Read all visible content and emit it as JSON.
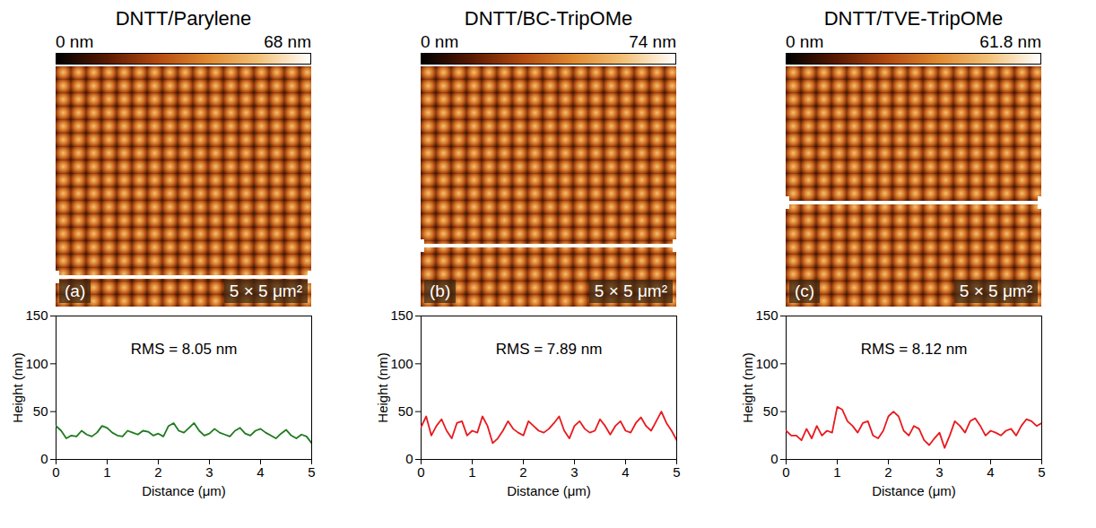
{
  "chart_data": [
    {
      "type": "line",
      "title": "DNTT/Parylene",
      "panel_label": "(a)",
      "scan_size": "5 × 5 μm²",
      "colorbar": {
        "range": [
          0,
          68
        ],
        "ticks": [
          {
            "value": 0,
            "label": "0 nm"
          },
          {
            "value": 68,
            "label": "68 nm"
          }
        ]
      },
      "annotation": "RMS = 8.05 nm",
      "xlabel": "Distance (μm)",
      "ylabel": "Height (nm)",
      "xlim": [
        0,
        5
      ],
      "xticks": [
        0,
        1,
        2,
        3,
        4,
        5
      ],
      "ylim": [
        0,
        150
      ],
      "yticks": [
        0,
        50,
        100,
        150
      ],
      "x": [
        0,
        0.1,
        0.2,
        0.3,
        0.4,
        0.5,
        0.6,
        0.7,
        0.8,
        0.9,
        1,
        1.1,
        1.2,
        1.3,
        1.4,
        1.5,
        1.6,
        1.7,
        1.8,
        1.9,
        2,
        2.1,
        2.2,
        2.3,
        2.4,
        2.5,
        2.6,
        2.7,
        2.8,
        2.9,
        3,
        3.1,
        3.2,
        3.3,
        3.4,
        3.5,
        3.6,
        3.7,
        3.8,
        3.9,
        4,
        4.1,
        4.2,
        4.3,
        4.4,
        4.5,
        4.6,
        4.7,
        4.8,
        4.9,
        5
      ],
      "series": [
        {
          "color": "#1e7a1e",
          "values": [
            35,
            30,
            22,
            25,
            24,
            30,
            26,
            24,
            28,
            35,
            33,
            28,
            25,
            24,
            30,
            28,
            26,
            30,
            29,
            25,
            27,
            24,
            35,
            38,
            30,
            28,
            33,
            38,
            30,
            25,
            27,
            32,
            28,
            26,
            24,
            30,
            33,
            27,
            25,
            30,
            32,
            28,
            25,
            22,
            27,
            31,
            25,
            22,
            26,
            24,
            17
          ]
        }
      ]
    },
    {
      "type": "line",
      "title": "DNTT/BC-TripOMe",
      "panel_label": "(b)",
      "scan_size": "5 × 5 μm²",
      "colorbar": {
        "range": [
          0,
          74
        ],
        "ticks": [
          {
            "value": 0,
            "label": "0 nm"
          },
          {
            "value": 74,
            "label": "74 nm"
          }
        ]
      },
      "annotation": "RMS = 7.89 nm",
      "xlabel": "Distance (μm)",
      "ylabel": "Height (nm)",
      "xlim": [
        0,
        5
      ],
      "xticks": [
        0,
        1,
        2,
        3,
        4,
        5
      ],
      "ylim": [
        0,
        150
      ],
      "yticks": [
        0,
        50,
        100,
        150
      ],
      "x": [
        0,
        0.1,
        0.2,
        0.3,
        0.4,
        0.5,
        0.6,
        0.7,
        0.8,
        0.9,
        1,
        1.1,
        1.2,
        1.3,
        1.4,
        1.5,
        1.6,
        1.7,
        1.8,
        1.9,
        2,
        2.1,
        2.2,
        2.3,
        2.4,
        2.5,
        2.6,
        2.7,
        2.8,
        2.9,
        3,
        3.1,
        3.2,
        3.3,
        3.4,
        3.5,
        3.6,
        3.7,
        3.8,
        3.9,
        4,
        4.1,
        4.2,
        4.3,
        4.4,
        4.5,
        4.6,
        4.7,
        4.8,
        4.9,
        5
      ],
      "series": [
        {
          "color": "#e8191e",
          "values": [
            34,
            45,
            25,
            35,
            42,
            30,
            22,
            38,
            40,
            25,
            30,
            28,
            45,
            35,
            17,
            22,
            30,
            40,
            32,
            28,
            25,
            40,
            35,
            30,
            28,
            32,
            38,
            45,
            30,
            22,
            35,
            40,
            32,
            28,
            30,
            42,
            35,
            26,
            35,
            40,
            30,
            28,
            38,
            44,
            35,
            30,
            40,
            50,
            38,
            30,
            20
          ]
        }
      ]
    },
    {
      "type": "line",
      "title": "DNTT/TVE-TripOMe",
      "panel_label": "(c)",
      "scan_size": "5 × 5 μm²",
      "colorbar": {
        "range": [
          0,
          61.8
        ],
        "ticks": [
          {
            "value": 0,
            "label": "0 nm"
          },
          {
            "value": 61.8,
            "label": "61.8 nm"
          }
        ]
      },
      "annotation": "RMS = 8.12 nm",
      "xlabel": "Distance (μm)",
      "ylabel": "Height (nm)",
      "xlim": [
        0,
        5
      ],
      "xticks": [
        0,
        1,
        2,
        3,
        4,
        5
      ],
      "ylim": [
        0,
        150
      ],
      "yticks": [
        0,
        50,
        100,
        150
      ],
      "x": [
        0,
        0.1,
        0.2,
        0.3,
        0.4,
        0.5,
        0.6,
        0.7,
        0.8,
        0.9,
        1,
        1.1,
        1.2,
        1.3,
        1.4,
        1.5,
        1.6,
        1.7,
        1.8,
        1.9,
        2,
        2.1,
        2.2,
        2.3,
        2.4,
        2.5,
        2.6,
        2.7,
        2.8,
        2.9,
        3,
        3.1,
        3.2,
        3.3,
        3.4,
        3.5,
        3.6,
        3.7,
        3.8,
        3.9,
        4,
        4.1,
        4.2,
        4.3,
        4.4,
        4.5,
        4.6,
        4.7,
        4.8,
        4.9,
        5
      ],
      "series": [
        {
          "color": "#e8191e",
          "values": [
            30,
            25,
            25,
            20,
            32,
            22,
            35,
            25,
            30,
            28,
            55,
            52,
            40,
            35,
            28,
            38,
            40,
            25,
            22,
            30,
            45,
            50,
            45,
            30,
            25,
            35,
            32,
            20,
            15,
            22,
            28,
            12,
            25,
            40,
            35,
            28,
            40,
            43,
            35,
            25,
            30,
            28,
            25,
            30,
            32,
            25,
            35,
            42,
            40,
            35,
            38
          ]
        }
      ]
    }
  ]
}
